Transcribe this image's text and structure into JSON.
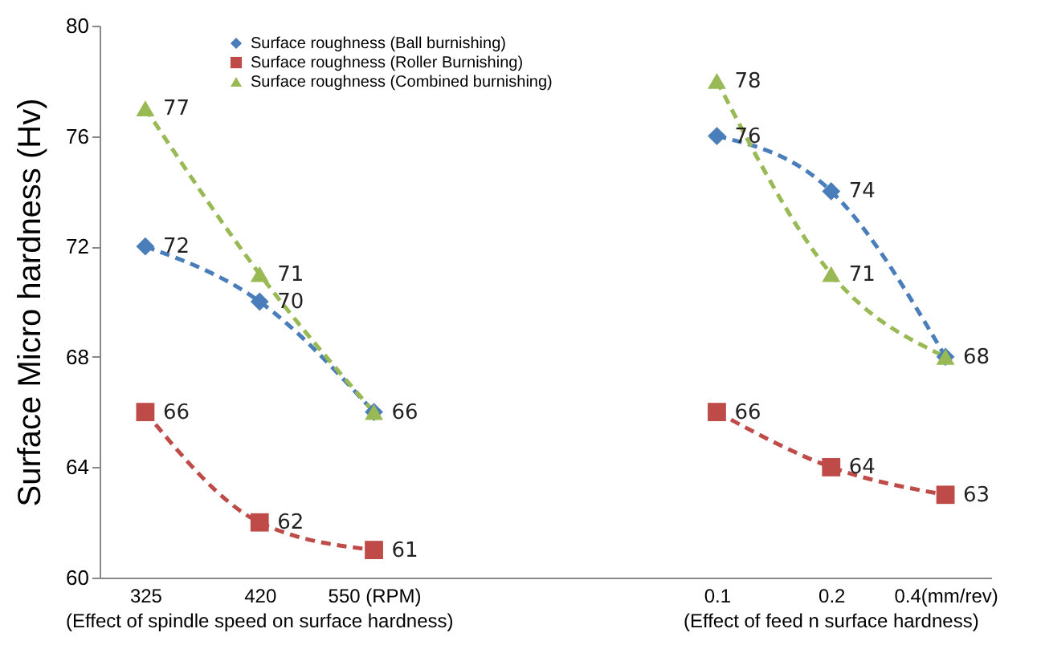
{
  "chart_data": {
    "type": "line",
    "ylabel": "Surface Micro hardness (Hv)",
    "categories": [
      "325",
      "420",
      "550 (RPM)",
      null,
      null,
      "0.1",
      "0.2",
      "0.4(mm/rev)"
    ],
    "series": [
      {
        "name": "Surface roughness (Ball burnishing)",
        "color": "#4a7ebb",
        "marker": "diamond",
        "values": [
          72,
          70,
          66,
          null,
          null,
          76,
          74,
          68
        ]
      },
      {
        "name": "Surface roughness (Roller Burnishing)",
        "color": "#be4b48",
        "marker": "square",
        "values": [
          66,
          62,
          61,
          null,
          null,
          66,
          64,
          63
        ]
      },
      {
        "name": "Surface roughness (Combined burnishing)",
        "color": "#98b954",
        "marker": "triangle",
        "values": [
          77,
          71,
          66,
          null,
          null,
          78,
          71,
          68
        ],
        "value_labels": [
          "77",
          "71",
          null,
          null,
          null,
          "78",
          "71",
          null
        ]
      }
    ],
    "ylim": [
      60,
      80
    ],
    "yticks": [
      60,
      64,
      68,
      72,
      76,
      80
    ],
    "line_style": "dashed",
    "data_labels": true,
    "legend": "top",
    "grid": false,
    "annotations": [
      "(Effect of spindle speed on surface hardness)",
      "(Effect of feed n surface hardness)"
    ]
  }
}
